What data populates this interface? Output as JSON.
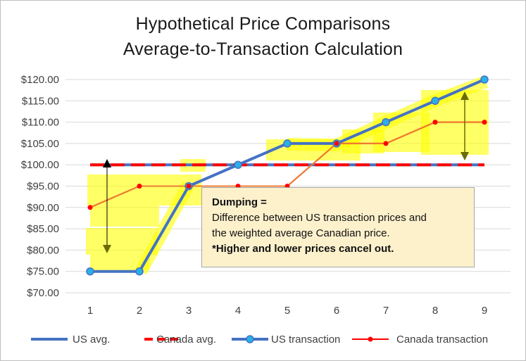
{
  "chart_data": {
    "type": "line",
    "title": "Hypothetical Price Comparisons",
    "subtitle": "Average-to-Transaction  Calculation",
    "x": [
      1,
      2,
      3,
      4,
      5,
      6,
      7,
      8,
      9
    ],
    "ylim": [
      70,
      120
    ],
    "ytick_step": 5,
    "y_tick_format": "$0.00",
    "grid": true,
    "legend_position": "bottom",
    "series": [
      {
        "name": "US avg.",
        "style": "solid",
        "color": "#4472c4",
        "values": [
          100,
          100,
          100,
          100,
          100,
          100,
          100,
          100,
          100
        ]
      },
      {
        "name": "Canada avg.",
        "style": "dashed",
        "color": "#ff0000",
        "values": [
          100,
          100,
          100,
          100,
          100,
          100,
          100,
          100,
          100
        ]
      },
      {
        "name": "US transaction",
        "style": "solid-circle-markers",
        "color": "#4472c4",
        "marker_fill": "#2ab0e8",
        "values": [
          75,
          75,
          95,
          100,
          105,
          105,
          110,
          115,
          120
        ]
      },
      {
        "name": "Canada transaction",
        "style": "solid-dot-markers",
        "color": "#ff0000",
        "values": [
          90,
          95,
          95,
          95,
          95,
          105,
          105,
          110,
          110
        ]
      }
    ],
    "overlay_series": [
      {
        "color": "#ed7d31",
        "values": [
          90,
          95,
          95,
          95,
          95,
          105,
          105,
          110,
          110
        ]
      }
    ],
    "highlight_color": "#ffff00",
    "annotation": {
      "heading": "Dumping  =",
      "line1": "Difference between US transaction prices and",
      "line2": "the weighted average Canadian price.",
      "line3": "*Higher and lower prices cancel out."
    }
  }
}
